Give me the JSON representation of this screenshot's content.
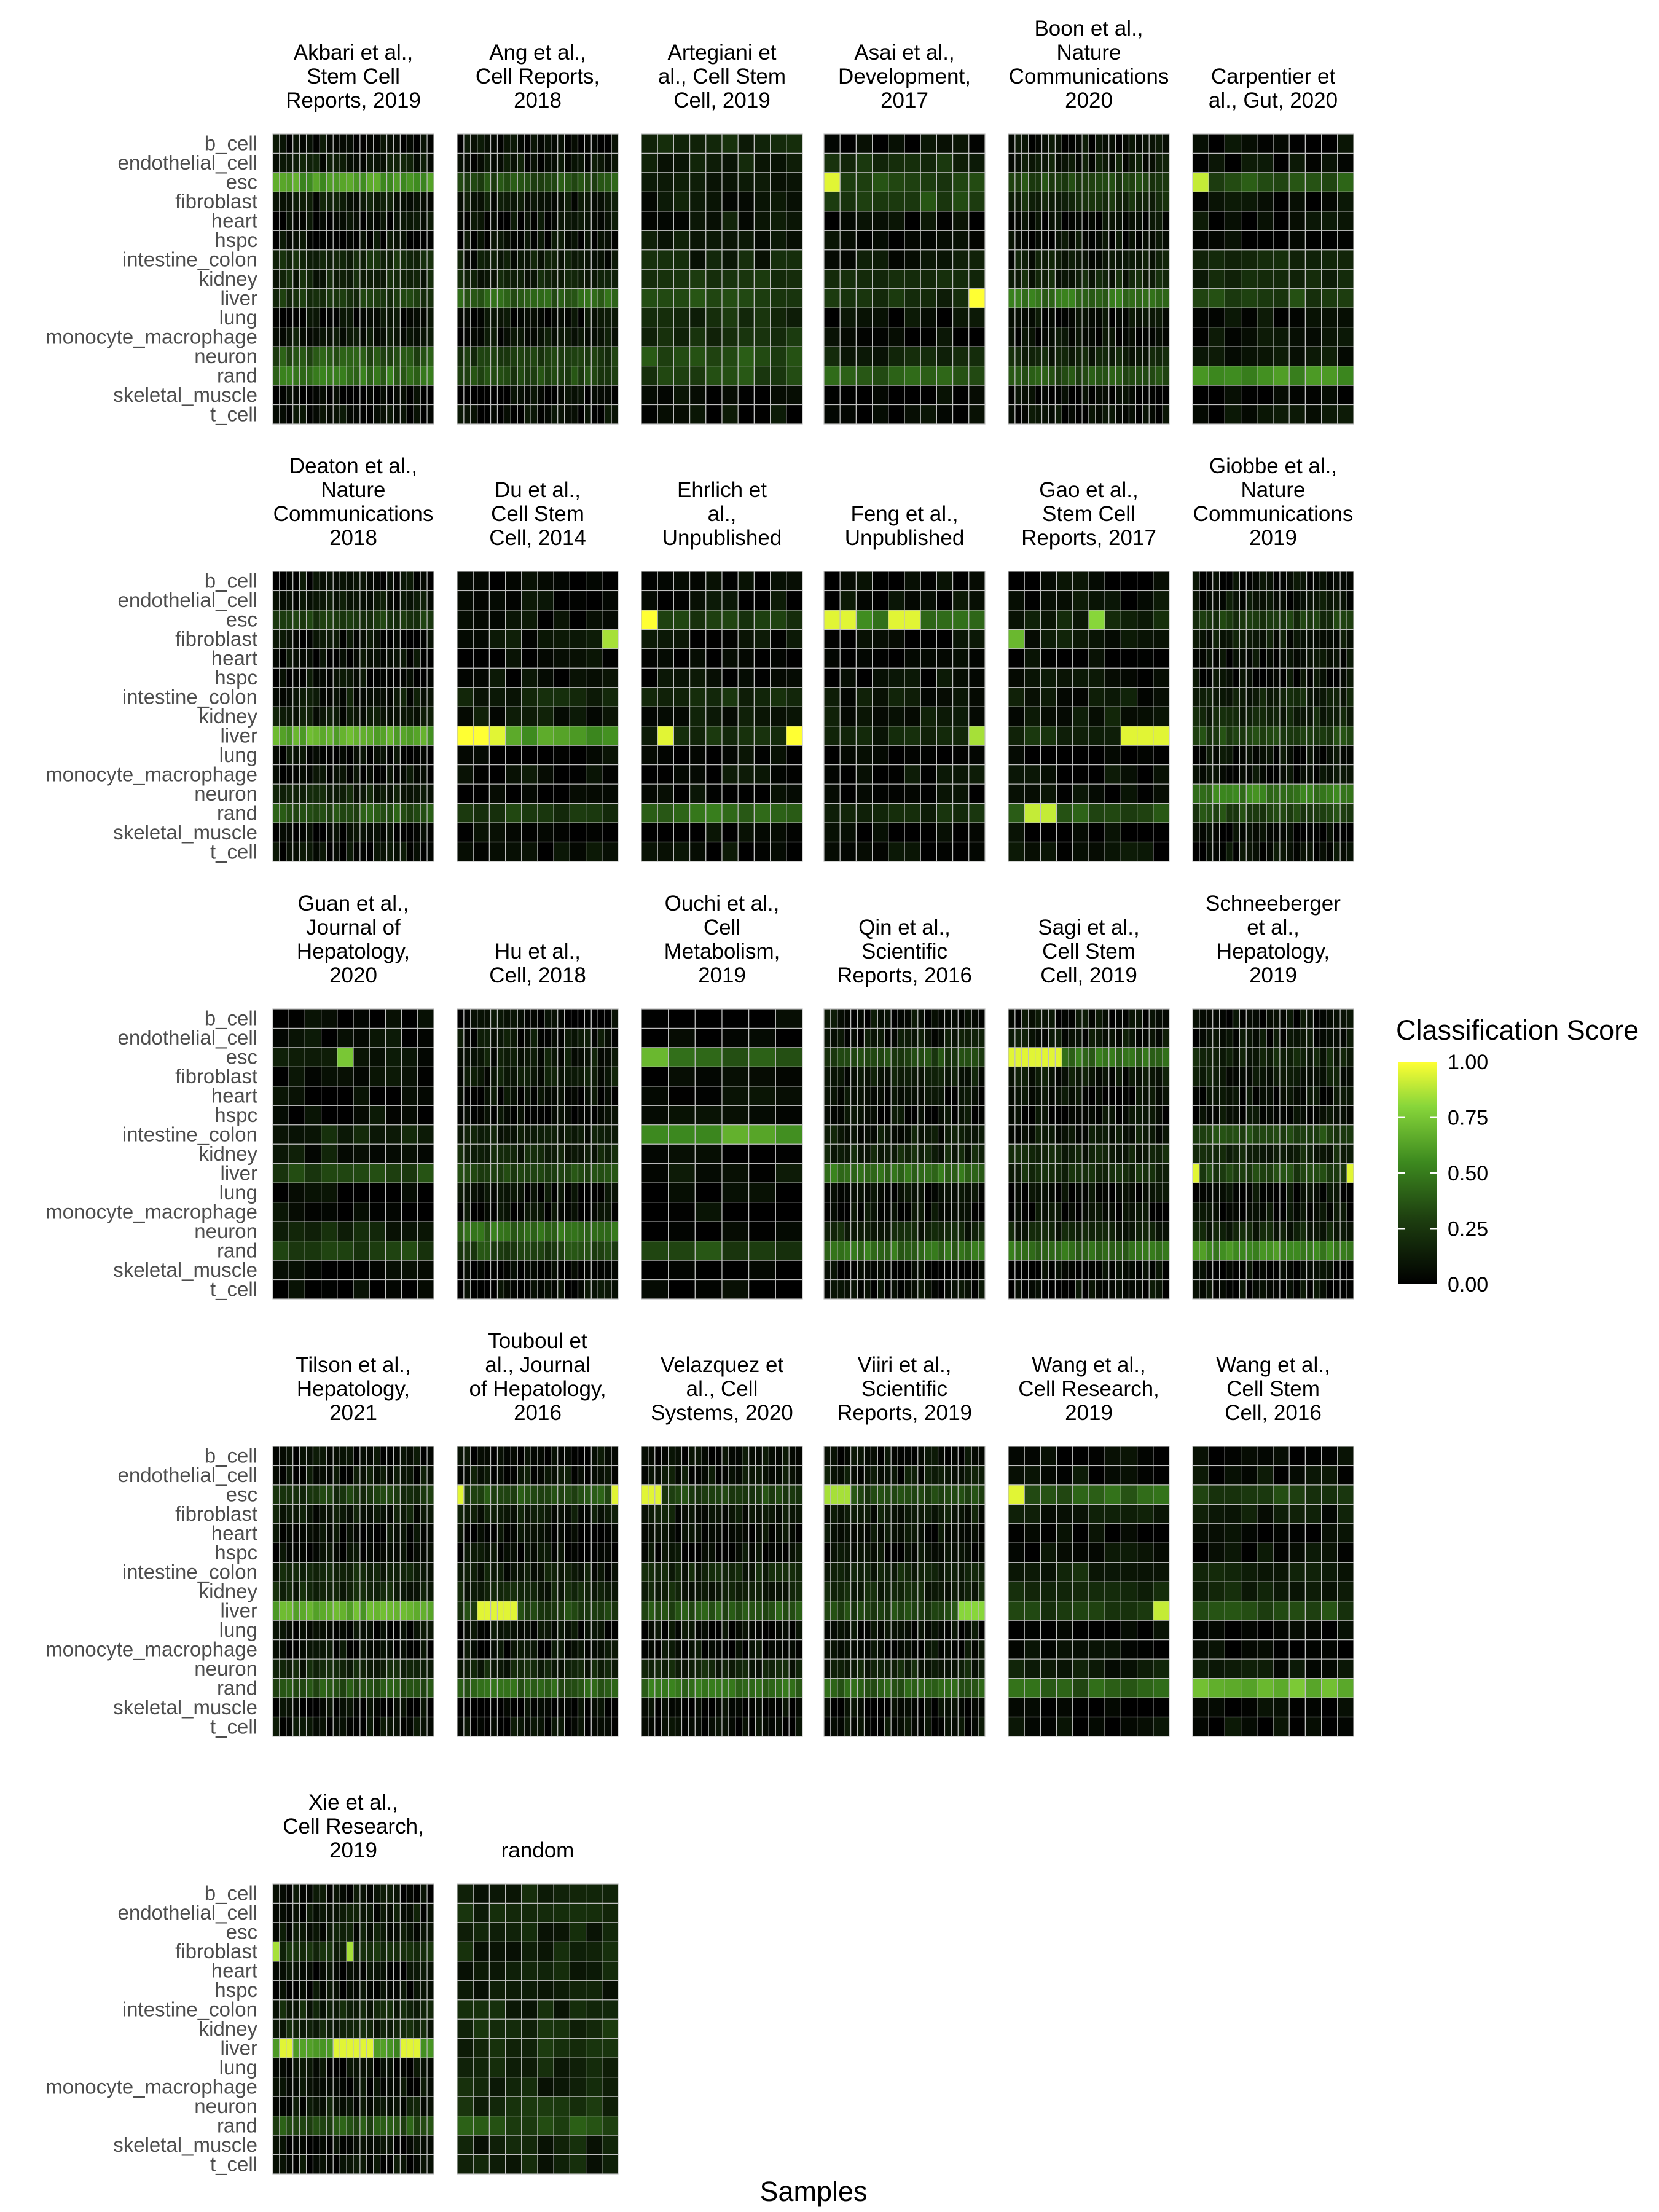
{
  "chart_data": {
    "type": "heatmap",
    "xlabel": "Samples",
    "legend": {
      "title": "Classification Score",
      "placement": "right",
      "ticks": [
        1.0,
        0.75,
        0.5,
        0.25,
        0.0
      ],
      "tick_labels": [
        "1.00",
        "0.75",
        "0.50",
        "0.25",
        "0.00"
      ]
    },
    "color_scale": {
      "low": "#000000",
      "mid": "#2f6e15",
      "high": "#ffff33",
      "range": [
        0,
        1
      ]
    },
    "categories": [
      "b_cell",
      "endothelial_cell",
      "esc",
      "fibroblast",
      "heart",
      "hspc",
      "intestine_colon",
      "kidney",
      "liver",
      "lung",
      "monocyte_macrophage",
      "neuron",
      "rand",
      "skeletal_muscle",
      "t_cell"
    ],
    "panels": [
      {
        "name": "Akbari et al., Stem Cell Reports, 2019",
        "title_lines": [
          "Akbari et al.,",
          "Stem Cell",
          "Reports, 2019"
        ],
        "n_samples": 24,
        "scores": [
          0.05,
          0.1,
          0.6,
          0.1,
          0.05,
          0.05,
          0.2,
          0.15,
          0.25,
          0.05,
          0.1,
          0.35,
          0.45,
          0.02,
          0.05
        ],
        "highlights": []
      },
      {
        "name": "Ang et al., Cell Reports, 2018",
        "title_lines": [
          "Ang et al.,",
          "Cell Reports,",
          "2018"
        ],
        "n_samples": 24,
        "scores": [
          0.05,
          0.08,
          0.35,
          0.1,
          0.05,
          0.05,
          0.1,
          0.15,
          0.4,
          0.05,
          0.08,
          0.25,
          0.3,
          0.02,
          0.05
        ],
        "highlights": []
      },
      {
        "name": "Artegiani et al., Cell Stem Cell, 2019",
        "title_lines": [
          "Artegiani et",
          "al., Cell Stem",
          "Cell, 2019"
        ],
        "n_samples": 10,
        "scores": [
          0.15,
          0.15,
          0.15,
          0.1,
          0.1,
          0.1,
          0.15,
          0.2,
          0.3,
          0.2,
          0.2,
          0.35,
          0.3,
          0.05,
          0.05
        ],
        "highlights": []
      },
      {
        "name": "Asai et al., Development, 2017",
        "title_lines": [
          "Asai et al.,",
          "Development,",
          "2017"
        ],
        "n_samples": 10,
        "scores": [
          0.05,
          0.2,
          0.3,
          0.3,
          0.05,
          0.05,
          0.1,
          0.15,
          0.2,
          0.05,
          0.05,
          0.15,
          0.4,
          0.02,
          0.05
        ],
        "highlights": [
          [
            2,
            0,
            0.95
          ],
          [
            8,
            9,
            1.0
          ]
        ]
      },
      {
        "name": "Boon et al., Nature Communications 2020",
        "title_lines": [
          "Boon et al.,",
          "Nature",
          "Communications",
          "2020"
        ],
        "n_samples": 24,
        "scores": [
          0.05,
          0.1,
          0.3,
          0.2,
          0.05,
          0.05,
          0.1,
          0.15,
          0.45,
          0.05,
          0.05,
          0.15,
          0.35,
          0.02,
          0.05
        ],
        "highlights": []
      },
      {
        "name": "Carpentier et al., Gut, 2020",
        "title_lines": [
          "Carpentier et",
          "al., Gut, 2020"
        ],
        "n_samples": 10,
        "scores": [
          0.05,
          0.05,
          0.35,
          0.05,
          0.05,
          0.05,
          0.2,
          0.15,
          0.3,
          0.05,
          0.05,
          0.1,
          0.55,
          0.02,
          0.05
        ],
        "highlights": [
          [
            2,
            0,
            0.9
          ]
        ]
      },
      {
        "name": "Deaton et al., Nature Communications 2018",
        "title_lines": [
          "Deaton et al.,",
          "Nature",
          "Communications",
          "2018"
        ],
        "n_samples": 24,
        "scores": [
          0.05,
          0.08,
          0.25,
          0.05,
          0.05,
          0.05,
          0.1,
          0.1,
          0.65,
          0.05,
          0.05,
          0.15,
          0.35,
          0.02,
          0.05
        ],
        "highlights": []
      },
      {
        "name": "Du et al., Cell Stem Cell, 2014",
        "title_lines": [
          "Du et al.,",
          "Cell Stem",
          "Cell, 2014"
        ],
        "n_samples": 10,
        "scores": [
          0.02,
          0.05,
          0.05,
          0.1,
          0.02,
          0.05,
          0.15,
          0.1,
          0.6,
          0.02,
          0.05,
          0.05,
          0.25,
          0.02,
          0.05
        ],
        "highlights": [
          [
            3,
            9,
            0.85
          ],
          [
            8,
            0,
            1.0
          ],
          [
            8,
            1,
            1.0
          ],
          [
            8,
            2,
            0.95
          ]
        ]
      },
      {
        "name": "Ehrlich et al., Unpublished",
        "title_lines": [
          "Ehrlich et",
          "al.,",
          "Unpublished"
        ],
        "n_samples": 10,
        "scores": [
          0.02,
          0.05,
          0.25,
          0.05,
          0.02,
          0.05,
          0.2,
          0.1,
          0.2,
          0.02,
          0.05,
          0.05,
          0.45,
          0.02,
          0.05
        ],
        "highlights": [
          [
            2,
            0,
            1.0
          ],
          [
            8,
            1,
            0.95
          ],
          [
            8,
            9,
            1.0
          ]
        ]
      },
      {
        "name": "Feng et al., Unpublished",
        "title_lines": [
          "Feng et al.,",
          "Unpublished"
        ],
        "n_samples": 10,
        "scores": [
          0.02,
          0.05,
          0.5,
          0.05,
          0.02,
          0.05,
          0.1,
          0.1,
          0.15,
          0.02,
          0.05,
          0.05,
          0.2,
          0.02,
          0.05
        ],
        "highlights": [
          [
            2,
            0,
            0.95
          ],
          [
            2,
            1,
            0.95
          ],
          [
            2,
            4,
            0.95
          ],
          [
            2,
            5,
            0.95
          ],
          [
            8,
            9,
            0.85
          ]
        ]
      },
      {
        "name": "Gao et al., Stem Cell Reports, 2017",
        "title_lines": [
          "Gao et al.,",
          "Stem Cell",
          "Reports, 2017"
        ],
        "n_samples": 10,
        "scores": [
          0.02,
          0.05,
          0.15,
          0.1,
          0.02,
          0.05,
          0.1,
          0.1,
          0.2,
          0.02,
          0.05,
          0.05,
          0.35,
          0.02,
          0.05
        ],
        "highlights": [
          [
            2,
            5,
            0.8
          ],
          [
            3,
            0,
            0.7
          ],
          [
            8,
            7,
            0.95
          ],
          [
            8,
            8,
            0.95
          ],
          [
            8,
            9,
            0.95
          ],
          [
            12,
            1,
            0.9
          ],
          [
            12,
            2,
            0.9
          ]
        ]
      },
      {
        "name": "Giobbe et al., Nature Communications 2019",
        "title_lines": [
          "Giobbe et al.,",
          "Nature",
          "Communications",
          "2019"
        ],
        "n_samples": 24,
        "scores": [
          0.05,
          0.08,
          0.25,
          0.1,
          0.05,
          0.05,
          0.15,
          0.15,
          0.3,
          0.05,
          0.05,
          0.5,
          0.3,
          0.02,
          0.05
        ],
        "highlights": []
      },
      {
        "name": "Guan et al., Journal of Hepatology, 2020",
        "title_lines": [
          "Guan et al.,",
          "Journal of",
          "Hepatology,",
          "2020"
        ],
        "n_samples": 10,
        "scores": [
          0.02,
          0.05,
          0.1,
          0.05,
          0.02,
          0.05,
          0.15,
          0.1,
          0.3,
          0.02,
          0.05,
          0.15,
          0.3,
          0.02,
          0.02
        ],
        "highlights": [
          [
            2,
            4,
            0.75
          ]
        ]
      },
      {
        "name": "Hu et al., Cell, 2018",
        "title_lines": [
          "Hu et al.,",
          "Cell, 2018"
        ],
        "n_samples": 24,
        "scores": [
          0.05,
          0.08,
          0.1,
          0.1,
          0.05,
          0.05,
          0.1,
          0.15,
          0.3,
          0.05,
          0.05,
          0.45,
          0.3,
          0.02,
          0.05
        ],
        "highlights": []
      },
      {
        "name": "Ouchi et al., Cell Metabolism, 2019",
        "title_lines": [
          "Ouchi et al.,",
          "Cell",
          "Metabolism,",
          "2019"
        ],
        "n_samples": 6,
        "scores": [
          0.02,
          0.02,
          0.4,
          0.02,
          0.02,
          0.02,
          0.6,
          0.02,
          0.05,
          0.02,
          0.02,
          0.05,
          0.3,
          0.02,
          0.02
        ],
        "highlights": [
          [
            2,
            0,
            0.7
          ]
        ]
      },
      {
        "name": "Qin et al., Scientific Reports, 2016",
        "title_lines": [
          "Qin et al.,",
          "Scientific",
          "Reports, 2016"
        ],
        "n_samples": 24,
        "scores": [
          0.05,
          0.08,
          0.3,
          0.1,
          0.05,
          0.05,
          0.1,
          0.15,
          0.45,
          0.05,
          0.05,
          0.15,
          0.45,
          0.02,
          0.05
        ],
        "highlights": []
      },
      {
        "name": "Sagi et al., Cell Stem Cell, 2019",
        "title_lines": [
          "Sagi et al.,",
          "Cell Stem",
          "Cell, 2019"
        ],
        "n_samples": 24,
        "scores": [
          0.05,
          0.08,
          0.45,
          0.1,
          0.05,
          0.05,
          0.1,
          0.15,
          0.2,
          0.05,
          0.05,
          0.15,
          0.45,
          0.02,
          0.05
        ],
        "highlights": [
          [
            2,
            0,
            0.95
          ],
          [
            2,
            1,
            0.95
          ],
          [
            2,
            2,
            0.95
          ],
          [
            2,
            3,
            0.95
          ],
          [
            2,
            4,
            0.95
          ],
          [
            2,
            5,
            0.95
          ],
          [
            2,
            6,
            0.95
          ],
          [
            2,
            7,
            0.95
          ]
        ]
      },
      {
        "name": "Schneeberger et al., Hepatology, 2019",
        "title_lines": [
          "Schneeberger",
          "et al.,",
          "Hepatology,",
          "2019"
        ],
        "n_samples": 24,
        "scores": [
          0.05,
          0.08,
          0.15,
          0.1,
          0.05,
          0.05,
          0.3,
          0.15,
          0.3,
          0.05,
          0.05,
          0.15,
          0.55,
          0.02,
          0.05
        ],
        "highlights": [
          [
            8,
            0,
            0.95
          ],
          [
            8,
            23,
            0.95
          ]
        ]
      },
      {
        "name": "Tilson et al., Hepatology, 2021",
        "title_lines": [
          "Tilson et al.,",
          "Hepatology,",
          "2021"
        ],
        "n_samples": 24,
        "scores": [
          0.05,
          0.08,
          0.25,
          0.1,
          0.05,
          0.05,
          0.15,
          0.15,
          0.65,
          0.05,
          0.05,
          0.15,
          0.35,
          0.02,
          0.05
        ],
        "highlights": []
      },
      {
        "name": "Touboul et al., Journal of Hepatology, 2016",
        "title_lines": [
          "Touboul et",
          "al., Journal",
          "of Hepatology,",
          "2016"
        ],
        "n_samples": 24,
        "scores": [
          0.05,
          0.08,
          0.35,
          0.1,
          0.05,
          0.05,
          0.1,
          0.15,
          0.3,
          0.05,
          0.05,
          0.15,
          0.4,
          0.02,
          0.05
        ],
        "highlights": [
          [
            2,
            0,
            0.95
          ],
          [
            2,
            23,
            0.95
          ],
          [
            8,
            3,
            0.95
          ],
          [
            8,
            4,
            0.95
          ],
          [
            8,
            5,
            0.95
          ],
          [
            8,
            6,
            0.95
          ],
          [
            8,
            7,
            0.95
          ],
          [
            8,
            8,
            0.95
          ]
        ]
      },
      {
        "name": "Velazquez et al., Cell Systems, 2020",
        "title_lines": [
          "Velazquez et",
          "al., Cell",
          "Systems, 2020"
        ],
        "n_samples": 24,
        "scores": [
          0.05,
          0.08,
          0.3,
          0.1,
          0.05,
          0.05,
          0.15,
          0.15,
          0.35,
          0.05,
          0.05,
          0.15,
          0.45,
          0.02,
          0.05
        ],
        "highlights": [
          [
            2,
            0,
            0.95
          ],
          [
            2,
            1,
            0.95
          ],
          [
            2,
            2,
            0.95
          ]
        ]
      },
      {
        "name": "Viiri et al., Scientific Reports, 2019",
        "title_lines": [
          "Viiri et al.,",
          "Scientific",
          "Reports, 2019"
        ],
        "n_samples": 24,
        "scores": [
          0.05,
          0.08,
          0.3,
          0.1,
          0.05,
          0.05,
          0.15,
          0.15,
          0.3,
          0.05,
          0.05,
          0.15,
          0.4,
          0.02,
          0.05
        ],
        "highlights": [
          [
            2,
            0,
            0.85
          ],
          [
            2,
            1,
            0.85
          ],
          [
            2,
            2,
            0.85
          ],
          [
            2,
            3,
            0.85
          ],
          [
            8,
            20,
            0.8
          ],
          [
            8,
            21,
            0.8
          ],
          [
            8,
            22,
            0.8
          ],
          [
            8,
            23,
            0.8
          ]
        ]
      },
      {
        "name": "Wang et al., Cell Research, 2019",
        "title_lines": [
          "Wang et al.,",
          "Cell Research,",
          "2019"
        ],
        "n_samples": 10,
        "scores": [
          0.02,
          0.05,
          0.4,
          0.1,
          0.02,
          0.05,
          0.15,
          0.15,
          0.25,
          0.02,
          0.05,
          0.1,
          0.4,
          0.02,
          0.05
        ],
        "highlights": [
          [
            2,
            0,
            0.95
          ],
          [
            8,
            9,
            0.9
          ]
        ]
      },
      {
        "name": "Wang et al., Cell Stem Cell, 2016",
        "title_lines": [
          "Wang et al.,",
          "Cell Stem",
          "Cell, 2016"
        ],
        "n_samples": 10,
        "scores": [
          0.02,
          0.05,
          0.3,
          0.1,
          0.02,
          0.05,
          0.15,
          0.15,
          0.3,
          0.02,
          0.05,
          0.1,
          0.7,
          0.02,
          0.05
        ],
        "highlights": []
      },
      {
        "name": "Xie et al., Cell Research, 2019",
        "title_lines": [
          "Xie et al.,",
          "Cell Research,",
          "2019"
        ],
        "n_samples": 24,
        "scores": [
          0.05,
          0.08,
          0.1,
          0.2,
          0.05,
          0.05,
          0.15,
          0.15,
          0.55,
          0.05,
          0.05,
          0.1,
          0.35,
          0.02,
          0.05
        ],
        "highlights": [
          [
            3,
            0,
            0.85
          ],
          [
            3,
            11,
            0.85
          ],
          [
            8,
            1,
            0.95
          ],
          [
            8,
            2,
            0.95
          ],
          [
            8,
            9,
            0.95
          ],
          [
            8,
            10,
            0.95
          ],
          [
            8,
            11,
            0.95
          ],
          [
            8,
            12,
            0.95
          ],
          [
            8,
            13,
            0.95
          ],
          [
            8,
            14,
            0.95
          ],
          [
            8,
            19,
            0.95
          ],
          [
            8,
            20,
            0.95
          ],
          [
            8,
            21,
            0.95
          ]
        ]
      },
      {
        "name": "random",
        "title_lines": [
          "random"
        ],
        "n_samples": 10,
        "scores": [
          0.15,
          0.2,
          0.15,
          0.15,
          0.15,
          0.15,
          0.15,
          0.2,
          0.2,
          0.15,
          0.15,
          0.2,
          0.35,
          0.15,
          0.15
        ],
        "highlights": []
      }
    ]
  }
}
